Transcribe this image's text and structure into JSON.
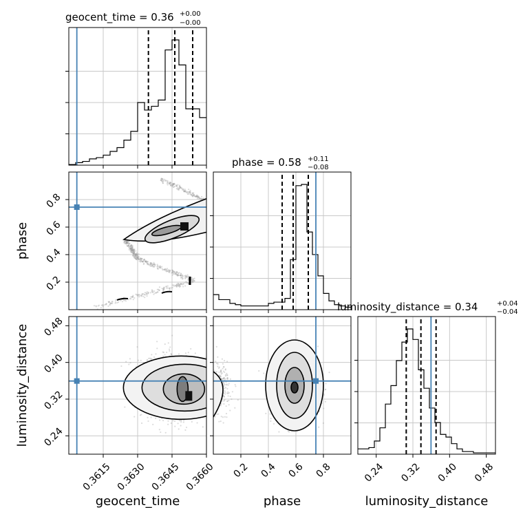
{
  "chart_data": {
    "type": "corner",
    "parameters": [
      {
        "key": "geocent_time",
        "label": "geocent_time",
        "title": {
          "prefix": "geocent_time = ",
          "median": "0.36",
          "plus": "+0.00",
          "minus": "−0.00"
        },
        "range": [
          0.36,
          0.366
        ],
        "ticks": [
          0.3615,
          0.363,
          0.3645,
          0.366
        ],
        "tick_labels": [
          "0.3615",
          "0.3630",
          "0.3645",
          "0.3660"
        ],
        "truth": 0.36035,
        "quantiles": [
          0.36347,
          0.36462,
          0.3654
        ],
        "histogram": [
          0.005,
          0.02,
          0.03,
          0.05,
          0.06,
          0.08,
          0.11,
          0.14,
          0.2,
          0.27,
          0.5,
          0.44,
          0.47,
          0.52,
          0.92,
          1.0,
          0.8,
          0.45,
          0.45,
          0.38
        ]
      },
      {
        "key": "phase",
        "label": "phase",
        "title": {
          "prefix": "phase = ",
          "median": "0.58",
          "plus": "+0.11",
          "minus": "−0.08"
        },
        "range": [
          0.0,
          1.0
        ],
        "ticks": [
          0.2,
          0.4,
          0.6,
          0.8
        ],
        "tick_labels": [
          "0.2",
          "0.4",
          "0.6",
          "0.8"
        ],
        "truth": 0.745,
        "quantiles": [
          0.5,
          0.58,
          0.69
        ],
        "histogram": [
          0.12,
          0.08,
          0.08,
          0.05,
          0.04,
          0.03,
          0.03,
          0.03,
          0.03,
          0.03,
          0.05,
          0.06,
          0.06,
          0.09,
          0.4,
          0.99,
          1.0,
          0.62,
          0.44,
          0.27,
          0.13,
          0.07,
          0.04,
          0.03,
          0.02
        ]
      },
      {
        "key": "luminosity_distance",
        "label": "luminosity_distance",
        "title": {
          "prefix": "luminosity_distance = ",
          "median": "0.34",
          "plus": "+0.04",
          "minus": "−0.04"
        },
        "range": [
          0.2,
          0.5
        ],
        "ticks": [
          0.24,
          0.32,
          0.4,
          0.48
        ],
        "tick_labels": [
          "0.24",
          "0.32",
          "0.40",
          "0.48"
        ],
        "truth": 0.3595,
        "quantiles": [
          0.3055,
          0.3375,
          0.3705
        ],
        "histogram": [
          0.04,
          0.04,
          0.05,
          0.1,
          0.2,
          0.38,
          0.52,
          0.71,
          0.85,
          0.95,
          0.87,
          0.64,
          0.5,
          0.35,
          0.24,
          0.15,
          0.13,
          0.08,
          0.04,
          0.02,
          0.02,
          0.01,
          0.01,
          0.01,
          0.01
        ]
      }
    ],
    "grid": true,
    "truth_color": "#4682b4",
    "contour_color": "#000000",
    "quantile_style": "dashed",
    "scatter_color": "#9a9a9a"
  }
}
